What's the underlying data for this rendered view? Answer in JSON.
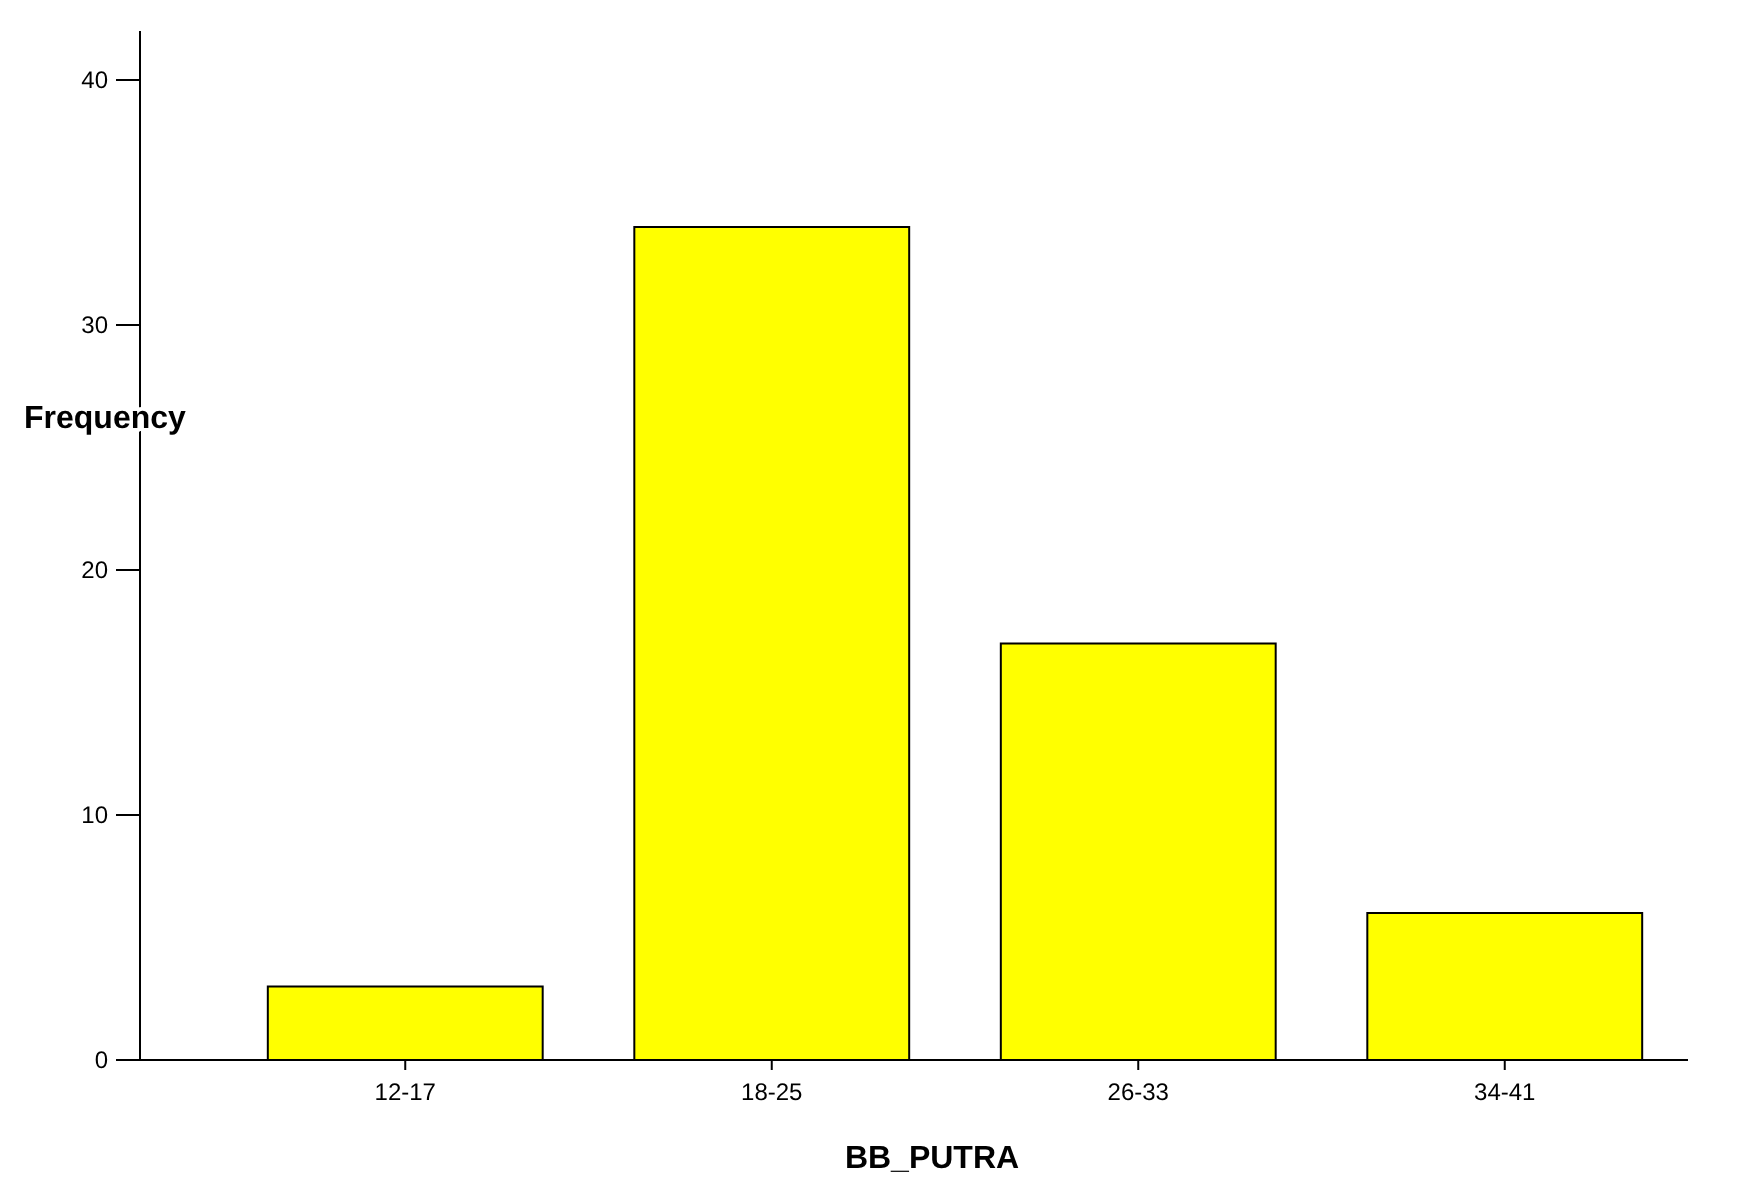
{
  "chart_data": {
    "type": "bar",
    "xlabel": "BB_PUTRA",
    "ylabel": "Frequency",
    "categories": [
      "12-17",
      "18-25",
      "26-33",
      "34-41"
    ],
    "values": [
      3,
      34,
      17,
      6
    ],
    "color": "#ffff00",
    "ylim": [
      0,
      42
    ],
    "yticks": [
      0,
      10,
      20,
      30,
      40
    ],
    "grid": false
  }
}
